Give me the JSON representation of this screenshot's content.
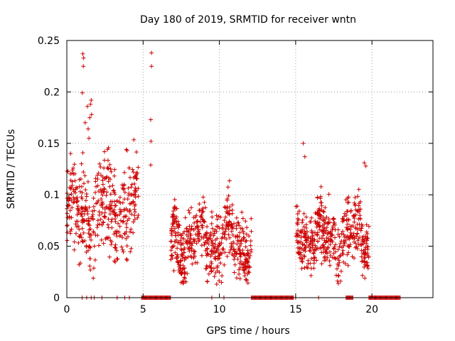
{
  "chart_data": {
    "type": "scatter",
    "title": "Day 180 of 2019, SRMTID for receiver wntn",
    "xlabel": "GPS time / hours",
    "ylabel": "SRMTID / TECUs",
    "xlim": [
      0,
      24
    ],
    "ylim": [
      0,
      0.25
    ],
    "xticks": [
      0,
      5,
      10,
      15,
      20
    ],
    "yticks": [
      0,
      0.05,
      0.1,
      0.15,
      0.2,
      0.25
    ],
    "xtick_labels": [
      "0",
      "5",
      "10",
      "15",
      "20"
    ],
    "ytick_labels": [
      "0",
      "0.05",
      "0.1",
      "0.15",
      "0.2",
      "0.25"
    ],
    "grid": true,
    "marker": "+",
    "color": "#cc0000",
    "series": [
      {
        "name": "SRMTID",
        "clusters": [
          {
            "x_start": 0.0,
            "x_end": 4.7,
            "y_center": 0.085,
            "y_spread": 0.03,
            "count": 420
          },
          {
            "x_start": 6.8,
            "x_end": 12.1,
            "y_center": 0.055,
            "y_spread": 0.02,
            "count": 520
          },
          {
            "x_start": 15.0,
            "x_end": 19.8,
            "y_center": 0.06,
            "y_spread": 0.02,
            "count": 460
          }
        ],
        "highlights": [
          {
            "x": 1.05,
            "y": 0.237
          },
          {
            "x": 1.1,
            "y": 0.233
          },
          {
            "x": 1.08,
            "y": 0.225
          },
          {
            "x": 1.02,
            "y": 0.199
          },
          {
            "x": 1.6,
            "y": 0.192
          },
          {
            "x": 1.55,
            "y": 0.188
          },
          {
            "x": 1.35,
            "y": 0.186
          },
          {
            "x": 1.62,
            "y": 0.178
          },
          {
            "x": 1.5,
            "y": 0.175
          },
          {
            "x": 1.2,
            "y": 0.17
          },
          {
            "x": 1.4,
            "y": 0.164
          },
          {
            "x": 1.45,
            "y": 0.155
          },
          {
            "x": 5.55,
            "y": 0.238
          },
          {
            "x": 5.55,
            "y": 0.225
          },
          {
            "x": 5.5,
            "y": 0.173
          },
          {
            "x": 5.52,
            "y": 0.152
          },
          {
            "x": 5.5,
            "y": 0.129
          },
          {
            "x": 3.9,
            "y": 0.144
          },
          {
            "x": 3.95,
            "y": 0.143
          },
          {
            "x": 15.5,
            "y": 0.15
          },
          {
            "x": 15.6,
            "y": 0.137
          },
          {
            "x": 19.5,
            "y": 0.131
          },
          {
            "x": 19.6,
            "y": 0.128
          }
        ]
      },
      {
        "name": "zero-value",
        "ranges": [
          [
            4.9,
            6.8
          ],
          [
            12.1,
            14.9
          ],
          [
            18.3,
            18.8
          ],
          [
            19.8,
            21.9
          ]
        ],
        "singles": [
          1.0,
          1.3,
          1.6,
          1.8,
          2.3,
          3.3,
          3.8,
          4.1,
          9.5,
          10.3,
          15.0,
          16.5
        ]
      }
    ]
  }
}
